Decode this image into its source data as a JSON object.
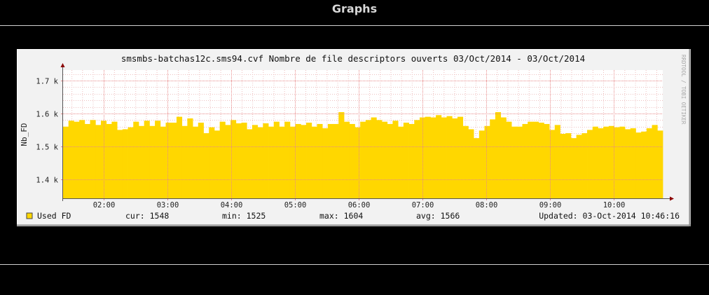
{
  "page": {
    "title": "Graphs"
  },
  "graph": {
    "title": "smsmbs-batchas12c.sms94.cvf Nombre de file descriptors ouverts 03/Oct/2014 - 03/Oct/2014",
    "watermark": "RRDTOOL / TOBI OETIKER",
    "legend": {
      "series_label": "Used FD",
      "cur": "cur: 1548",
      "min": "min: 1525",
      "max": "max: 1604",
      "avg": "avg: 1566",
      "updated": "Updated: 03-Oct-2014 10:46:16"
    }
  },
  "chart_data": {
    "type": "area",
    "title": "smsmbs-batchas12c.sms94.cvf Nombre de file descriptors ouverts 03/Oct/2014 - 03/Oct/2014",
    "xlabel": "",
    "ylabel": "Nb_FD",
    "x_ticks": [
      "02:00",
      "03:00",
      "04:00",
      "05:00",
      "06:00",
      "07:00",
      "08:00",
      "09:00",
      "10:00"
    ],
    "y_ticks": [
      {
        "value": 1400,
        "label": "1.4 k"
      },
      {
        "value": 1500,
        "label": "1.5 k"
      },
      {
        "value": 1600,
        "label": "1.6 k"
      },
      {
        "value": 1700,
        "label": "1.7 k"
      }
    ],
    "ylim": [
      1342,
      1732
    ],
    "x_range": [
      "01:22",
      "10:46"
    ],
    "grid": true,
    "colors": {
      "area": "#ffd700",
      "background": "#ffffff",
      "grid": "#e88a8a",
      "frame": "#f2f2f2",
      "axis": "#8b0000"
    },
    "series": [
      {
        "name": "Used FD",
        "values": [
          1560,
          1578,
          1575,
          1580,
          1568,
          1580,
          1565,
          1578,
          1568,
          1575,
          1550,
          1552,
          1558,
          1575,
          1562,
          1578,
          1562,
          1578,
          1560,
          1572,
          1572,
          1590,
          1562,
          1585,
          1560,
          1572,
          1540,
          1558,
          1548,
          1575,
          1565,
          1580,
          1570,
          1572,
          1552,
          1565,
          1558,
          1570,
          1560,
          1575,
          1560,
          1575,
          1560,
          1568,
          1565,
          1572,
          1560,
          1568,
          1555,
          1568,
          1568,
          1604,
          1575,
          1568,
          1558,
          1575,
          1580,
          1588,
          1580,
          1575,
          1568,
          1578,
          1560,
          1572,
          1568,
          1580,
          1588,
          1590,
          1588,
          1595,
          1588,
          1592,
          1585,
          1590,
          1562,
          1552,
          1525,
          1548,
          1562,
          1582,
          1604,
          1588,
          1575,
          1560,
          1560,
          1568,
          1575,
          1575,
          1572,
          1568,
          1550,
          1565,
          1538,
          1540,
          1525,
          1535,
          1540,
          1550,
          1560,
          1555,
          1560,
          1562,
          1558,
          1560,
          1552,
          1555,
          1542,
          1545,
          1555,
          1565,
          1548
        ]
      }
    ]
  }
}
